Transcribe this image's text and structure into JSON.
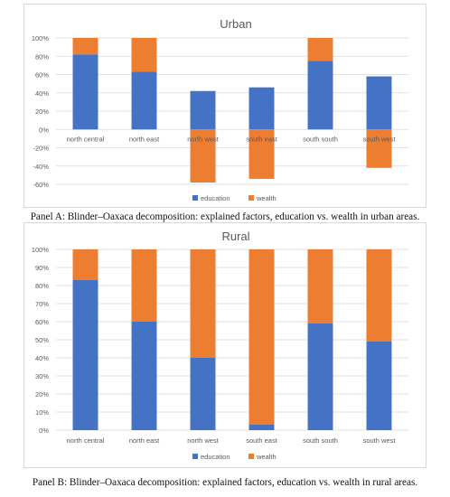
{
  "colors": {
    "education": "#4472c4",
    "wealth": "#ed7d31",
    "grid": "#d9d9d9",
    "text": "#595959"
  },
  "captions": {
    "panel_a": "Panel A: Blinder–Oaxaca decomposition: explained factors, education vs. wealth in urban areas.",
    "panel_b": "Panel B: Blinder–Oaxaca decomposition: explained factors, education vs. wealth in rural areas."
  },
  "chart_data": [
    {
      "type": "bar",
      "stacked": true,
      "title": "Urban",
      "categories": [
        "north central",
        "north east",
        "north west",
        "south east",
        "south south",
        "south west"
      ],
      "series": [
        {
          "name": "education",
          "values": [
            82,
            63,
            42,
            46,
            75,
            58
          ]
        },
        {
          "name": "wealth",
          "values": [
            18,
            37,
            -58,
            -54,
            25,
            -42
          ]
        }
      ],
      "ylim": [
        -60,
        100
      ],
      "yticks": [
        "100%",
        "80%",
        "60%",
        "40%",
        "20%",
        "0%",
        "-20%",
        "-40%",
        "-60%"
      ],
      "grid": true,
      "legend": "bottom"
    },
    {
      "type": "bar",
      "stacked": true,
      "title": "Rural",
      "categories": [
        "north central",
        "north east",
        "north west",
        "south east",
        "south south",
        "south west"
      ],
      "series": [
        {
          "name": "education",
          "values": [
            83,
            60,
            40,
            3,
            59,
            49
          ]
        },
        {
          "name": "wealth",
          "values": [
            17,
            40,
            60,
            97,
            41,
            51
          ]
        }
      ],
      "ylim": [
        0,
        100
      ],
      "yticks": [
        "100%",
        "90%",
        "80%",
        "70%",
        "60%",
        "50%",
        "40%",
        "30%",
        "20%",
        "10%",
        "0%"
      ],
      "grid": true,
      "legend": "bottom"
    }
  ]
}
